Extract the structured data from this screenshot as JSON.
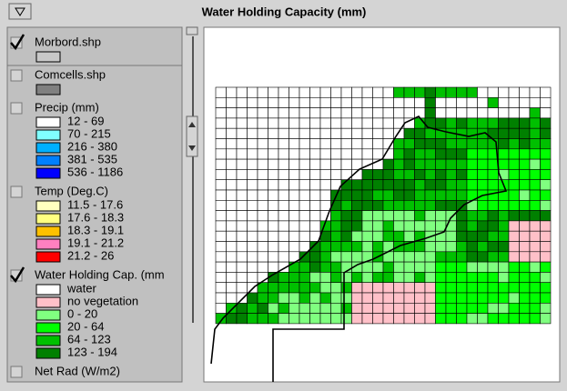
{
  "window": {
    "title": "Water Holding Capacity (mm)"
  },
  "layers": [
    {
      "name": "Morbord.shp",
      "checked": true,
      "legend": [
        {
          "color": "#c8c8c8"
        }
      ]
    },
    {
      "name": "Comcells.shp",
      "checked": false,
      "legend": [
        {
          "color": "#808080"
        }
      ]
    },
    {
      "name": "Precip (mm)",
      "checked": false,
      "legend": [
        {
          "label": "12 - 69",
          "color": "#ffffff"
        },
        {
          "label": "70 - 215",
          "color": "#80ffff"
        },
        {
          "label": "216 - 380",
          "color": "#00b0ff"
        },
        {
          "label": "381 - 535",
          "color": "#0080ff"
        },
        {
          "label": "536 - 1186",
          "color": "#0000ff"
        }
      ]
    },
    {
      "name": "Temp (Deg.C)",
      "checked": false,
      "legend": [
        {
          "label": "11.5 - 17.6",
          "color": "#ffffc0"
        },
        {
          "label": "17.6 - 18.3",
          "color": "#ffff80"
        },
        {
          "label": "18.3 - 19.1",
          "color": "#ffc000"
        },
        {
          "label": "19.1 - 21.2",
          "color": "#ff80c0"
        },
        {
          "label": "21.2 - 26",
          "color": "#ff0000"
        }
      ]
    },
    {
      "name": "Water Holding Cap. (mm",
      "checked": true,
      "legend": [
        {
          "label": "water",
          "color": "#ffffff"
        },
        {
          "label": "no vegetation",
          "color": "#ffc0c8"
        },
        {
          "label": "0 - 20",
          "color": "#80ff80"
        },
        {
          "label": "20 - 64",
          "color": "#00ff00"
        },
        {
          "label": "64 - 123",
          "color": "#00c000"
        },
        {
          "label": "123 - 194",
          "color": "#008000"
        }
      ]
    },
    {
      "name": "Net Rad (W/m2)",
      "checked": false,
      "legend": []
    }
  ]
}
